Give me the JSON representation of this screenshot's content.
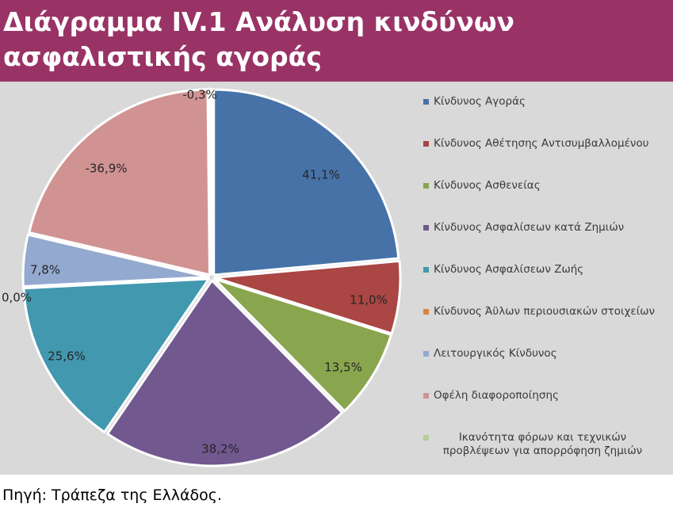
{
  "title": "Διάγραμμα IV.1 Ανάλυση κινδύνων ασφαλιστικής αγοράς",
  "source": "Πηγή: Τράπεζα της Ελλάδος.",
  "colors": {
    "header_bg": "#993366",
    "chart_bg": "#d9d9d9"
  },
  "chart_data": {
    "type": "pie",
    "legend_position": "right",
    "slices": [
      {
        "name": "Κίνδυνος Αγοράς",
        "value": 41.1,
        "label": "41,1%",
        "color": "#4672a8"
      },
      {
        "name": "Κίνδυνος Αθέτησης Αντισυμβαλλομένου",
        "value": 11.0,
        "label": "11,0%",
        "color": "#aa4643"
      },
      {
        "name": "Κίνδυνος Ασθενείας",
        "value": 13.5,
        "label": "13,5%",
        "color": "#89a54e"
      },
      {
        "name": "Κίνδυνος Ασφαλίσεων κατά Ζημιών",
        "value": 38.2,
        "label": "38,2%",
        "color": "#71588f"
      },
      {
        "name": "Κίνδυνος Ασφαλίσεων Ζωής",
        "value": 25.6,
        "label": "25,6%",
        "color": "#4198af"
      },
      {
        "name": "Κίνδυνος Άϋλων περιουσιακών στοιχείων",
        "value": 0.0,
        "label": "0,0%",
        "color": "#db843d"
      },
      {
        "name": "Λειτουργικός Κίνδυνος",
        "value": 7.8,
        "label": "7,8%",
        "color": "#93a9cf"
      },
      {
        "name": "Οφέλη διαφοροποίησης",
        "value": -36.9,
        "label": "-36,9%",
        "color": "#d19392"
      },
      {
        "name": "Ικανότητα φόρων και τεχνικών προβλέψεων για απορρόφηση ζημιών",
        "value": -0.3,
        "label": "-0,3%",
        "color": "#b9cd96"
      }
    ]
  }
}
